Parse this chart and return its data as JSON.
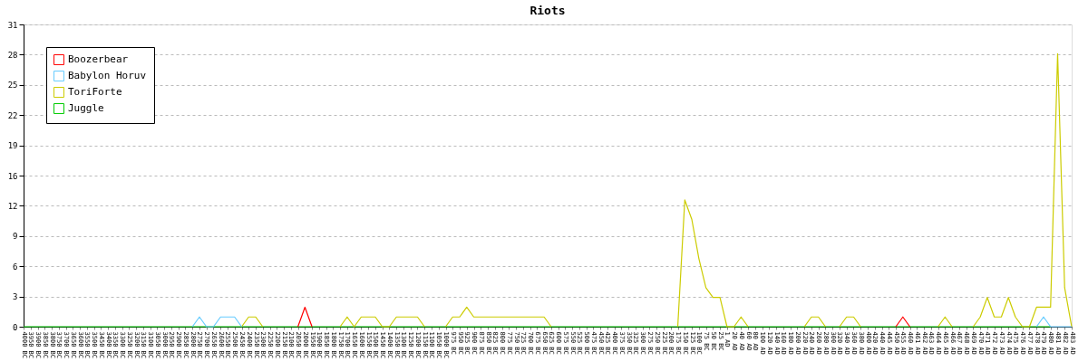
{
  "chart_data": {
    "type": "line",
    "title": "Riots",
    "categories": [
      "4000 BC",
      "3950 BC",
      "3900 BC",
      "3850 BC",
      "3800 BC",
      "3750 BC",
      "3700 BC",
      "3650 BC",
      "3600 BC",
      "3550 BC",
      "3500 BC",
      "3450 BC",
      "3400 BC",
      "3350 BC",
      "3300 BC",
      "3250 BC",
      "3200 BC",
      "3150 BC",
      "3100 BC",
      "3050 BC",
      "3000 BC",
      "2950 BC",
      "2900 BC",
      "2850 BC",
      "2800 BC",
      "2750 BC",
      "2700 BC",
      "2650 BC",
      "2600 BC",
      "2550 BC",
      "2500 BC",
      "2450 BC",
      "2400 BC",
      "2350 BC",
      "2300 BC",
      "2250 BC",
      "2200 BC",
      "2150 BC",
      "2100 BC",
      "2050 BC",
      "2000 BC",
      "1950 BC",
      "1900 BC",
      "1850 BC",
      "1800 BC",
      "1750 BC",
      "1700 BC",
      "1650 BC",
      "1600 BC",
      "1550 BC",
      "1500 BC",
      "1450 BC",
      "1400 BC",
      "1350 BC",
      "1300 BC",
      "1250 BC",
      "1200 BC",
      "1150 BC",
      "1100 BC",
      "1050 BC",
      "1000 BC",
      "975 BC",
      "950 BC",
      "925 BC",
      "900 BC",
      "875 BC",
      "850 BC",
      "825 BC",
      "800 BC",
      "775 BC",
      "750 BC",
      "725 BC",
      "700 BC",
      "675 BC",
      "650 BC",
      "625 BC",
      "600 BC",
      "575 BC",
      "550 BC",
      "525 BC",
      "500 BC",
      "475 BC",
      "450 BC",
      "425 BC",
      "400 BC",
      "375 BC",
      "350 BC",
      "325 BC",
      "300 BC",
      "275 BC",
      "250 BC",
      "225 BC",
      "200 BC",
      "175 BC",
      "150 BC",
      "125 BC",
      "100 BC",
      "75 BC",
      "50 BC",
      "25 BC",
      "1 AD",
      "20 AD",
      "40 AD",
      "60 AD",
      "80 AD",
      "100 AD",
      "120 AD",
      "140 AD",
      "160 AD",
      "180 AD",
      "200 AD",
      "220 AD",
      "240 AD",
      "260 AD",
      "280 AD",
      "300 AD",
      "320 AD",
      "340 AD",
      "360 AD",
      "380 AD",
      "400 AD",
      "420 AD",
      "440 AD",
      "445 AD",
      "450 AD",
      "455 AD",
      "460 AD",
      "461 AD",
      "462 AD",
      "463 AD",
      "464 AD",
      "465 AD",
      "466 AD",
      "467 AD",
      "468 AD",
      "469 AD",
      "470 AD",
      "471 AD",
      "472 AD",
      "473 AD",
      "474 AD",
      "475 AD",
      "476 AD",
      "477 AD",
      "478 AD",
      "479 AD",
      "480 AD",
      "481 AD",
      "482 AD",
      "483 AD"
    ],
    "series": [
      {
        "name": "Boozerbear",
        "color": "#ff0000",
        "values": [
          null,
          null,
          null,
          null,
          null,
          null,
          null,
          null,
          null,
          null,
          null,
          null,
          null,
          null,
          null,
          null,
          null,
          null,
          null,
          null,
          null,
          null,
          null,
          null,
          null,
          null,
          null,
          null,
          null,
          null,
          null,
          null,
          null,
          null,
          null,
          null,
          null,
          null,
          null,
          0,
          2,
          0,
          null,
          null,
          null,
          null,
          null,
          null,
          null,
          null,
          null,
          null,
          null,
          null,
          null,
          null,
          null,
          null,
          null,
          null,
          null,
          null,
          null,
          null,
          null,
          null,
          null,
          null,
          null,
          null,
          null,
          null,
          null,
          null,
          null,
          null,
          null,
          null,
          null,
          null,
          null,
          null,
          null,
          null,
          null,
          null,
          null,
          null,
          null,
          null,
          null,
          null,
          null,
          null,
          null,
          null,
          null,
          null,
          null,
          null,
          null,
          null,
          null,
          null,
          null,
          null,
          null,
          null,
          null,
          null,
          null,
          null,
          null,
          null,
          null,
          null,
          null,
          null,
          null,
          null,
          null,
          null,
          null,
          null,
          0,
          1,
          0,
          null,
          null,
          null,
          null,
          null,
          null,
          null,
          null,
          null,
          null,
          null,
          null,
          null,
          null,
          null,
          null,
          null,
          null,
          null,
          null,
          null,
          null,
          null
        ]
      },
      {
        "name": "Babylon Horuv",
        "color": "#66ccff",
        "values": [
          null,
          null,
          null,
          null,
          null,
          null,
          null,
          null,
          null,
          null,
          null,
          null,
          null,
          null,
          null,
          null,
          null,
          null,
          null,
          null,
          null,
          null,
          null,
          null,
          0,
          1,
          0,
          0,
          1,
          1,
          1,
          0,
          null,
          null,
          null,
          null,
          null,
          null,
          null,
          null,
          null,
          null,
          null,
          null,
          null,
          null,
          null,
          null,
          null,
          null,
          null,
          null,
          null,
          null,
          null,
          null,
          null,
          null,
          null,
          null,
          null,
          null,
          null,
          null,
          null,
          null,
          null,
          null,
          null,
          null,
          null,
          null,
          null,
          null,
          null,
          null,
          null,
          null,
          null,
          null,
          null,
          null,
          null,
          null,
          null,
          null,
          null,
          null,
          null,
          null,
          null,
          null,
          null,
          null,
          null,
          null,
          null,
          null,
          null,
          null,
          null,
          null,
          null,
          null,
          null,
          null,
          null,
          null,
          null,
          null,
          null,
          null,
          null,
          null,
          null,
          null,
          null,
          null,
          null,
          null,
          null,
          null,
          null,
          null,
          null,
          null,
          null,
          null,
          null,
          null,
          null,
          null,
          null,
          null,
          null,
          null,
          null,
          null,
          null,
          null,
          null,
          null,
          null,
          null,
          0,
          1,
          0,
          0,
          0,
          0
        ]
      },
      {
        "name": "ToriForte",
        "color": "#cccc00",
        "values": [
          null,
          null,
          null,
          null,
          null,
          null,
          null,
          null,
          null,
          null,
          null,
          null,
          null,
          null,
          null,
          null,
          null,
          null,
          null,
          null,
          null,
          null,
          null,
          null,
          null,
          null,
          null,
          null,
          null,
          null,
          null,
          0,
          1,
          1,
          0,
          null,
          null,
          null,
          null,
          null,
          null,
          null,
          null,
          null,
          null,
          0,
          1,
          0,
          1,
          1,
          1,
          0,
          0,
          1,
          1,
          1,
          1,
          0,
          null,
          null,
          0,
          1,
          1,
          2,
          1,
          1,
          1,
          1,
          1,
          1,
          1,
          1,
          1,
          1,
          1,
          0,
          null,
          null,
          null,
          null,
          null,
          null,
          null,
          null,
          null,
          null,
          null,
          null,
          null,
          null,
          null,
          null,
          null,
          0,
          13,
          11,
          7,
          4,
          3,
          3,
          0,
          0,
          1,
          0,
          null,
          null,
          null,
          null,
          null,
          null,
          null,
          0,
          1,
          1,
          0,
          null,
          0,
          1,
          1,
          0,
          null,
          null,
          null,
          null,
          null,
          null,
          null,
          null,
          null,
          null,
          0,
          1,
          0,
          null,
          null,
          0,
          1,
          3,
          1,
          1,
          3,
          1,
          0,
          0,
          2,
          2,
          2,
          28,
          4,
          0
        ]
      },
      {
        "name": "Juggle",
        "color": "#00cc00",
        "values": [
          0,
          0,
          0,
          0,
          0,
          0,
          0,
          0,
          0,
          0,
          0,
          0,
          0,
          0,
          0,
          0,
          0,
          0,
          0,
          0,
          0,
          0,
          0,
          0,
          0,
          0,
          0,
          0,
          0,
          0,
          0,
          0,
          0,
          0,
          0,
          0,
          0,
          0,
          0,
          0,
          0,
          0,
          0,
          0,
          0,
          0,
          0,
          0,
          0,
          0,
          0,
          0,
          0,
          0,
          0,
          0,
          0,
          0,
          0,
          0,
          0,
          0,
          0,
          0,
          0,
          0,
          0,
          0,
          0,
          0,
          0,
          0,
          0,
          0,
          0,
          0,
          0,
          0,
          0,
          0,
          0,
          0,
          0,
          0,
          0,
          0,
          0,
          0,
          0,
          0,
          0,
          0,
          0,
          0,
          0,
          0,
          0,
          0,
          0,
          0,
          0,
          0,
          0,
          0,
          0,
          0,
          0,
          0,
          0,
          0,
          0,
          0,
          0,
          0,
          0,
          0,
          0,
          0,
          0,
          0,
          0,
          0,
          0,
          0,
          0,
          0,
          0,
          0,
          0,
          0,
          0,
          0,
          0,
          0,
          0,
          0,
          0,
          0,
          0,
          0,
          0,
          0,
          0,
          0,
          0,
          0,
          0,
          null,
          null,
          null
        ]
      }
    ],
    "ylim": [
      0,
      31
    ],
    "yticks": [
      0,
      {
        "value": 3.1,
        "label": "3"
      },
      {
        "value": 6.2,
        "label": "6"
      },
      {
        "value": 9.3,
        "label": "9"
      },
      {
        "value": 12.4,
        "label": "12"
      },
      {
        "value": 15.5,
        "label": "16"
      },
      {
        "value": 18.6,
        "label": "19"
      },
      {
        "value": 21.7,
        "label": "22"
      },
      {
        "value": 24.8,
        "label": "25"
      },
      {
        "value": 27.9,
        "label": "28"
      },
      31
    ],
    "grid": "y",
    "legend": "top left",
    "marker": "none",
    "line_style": "solid"
  }
}
